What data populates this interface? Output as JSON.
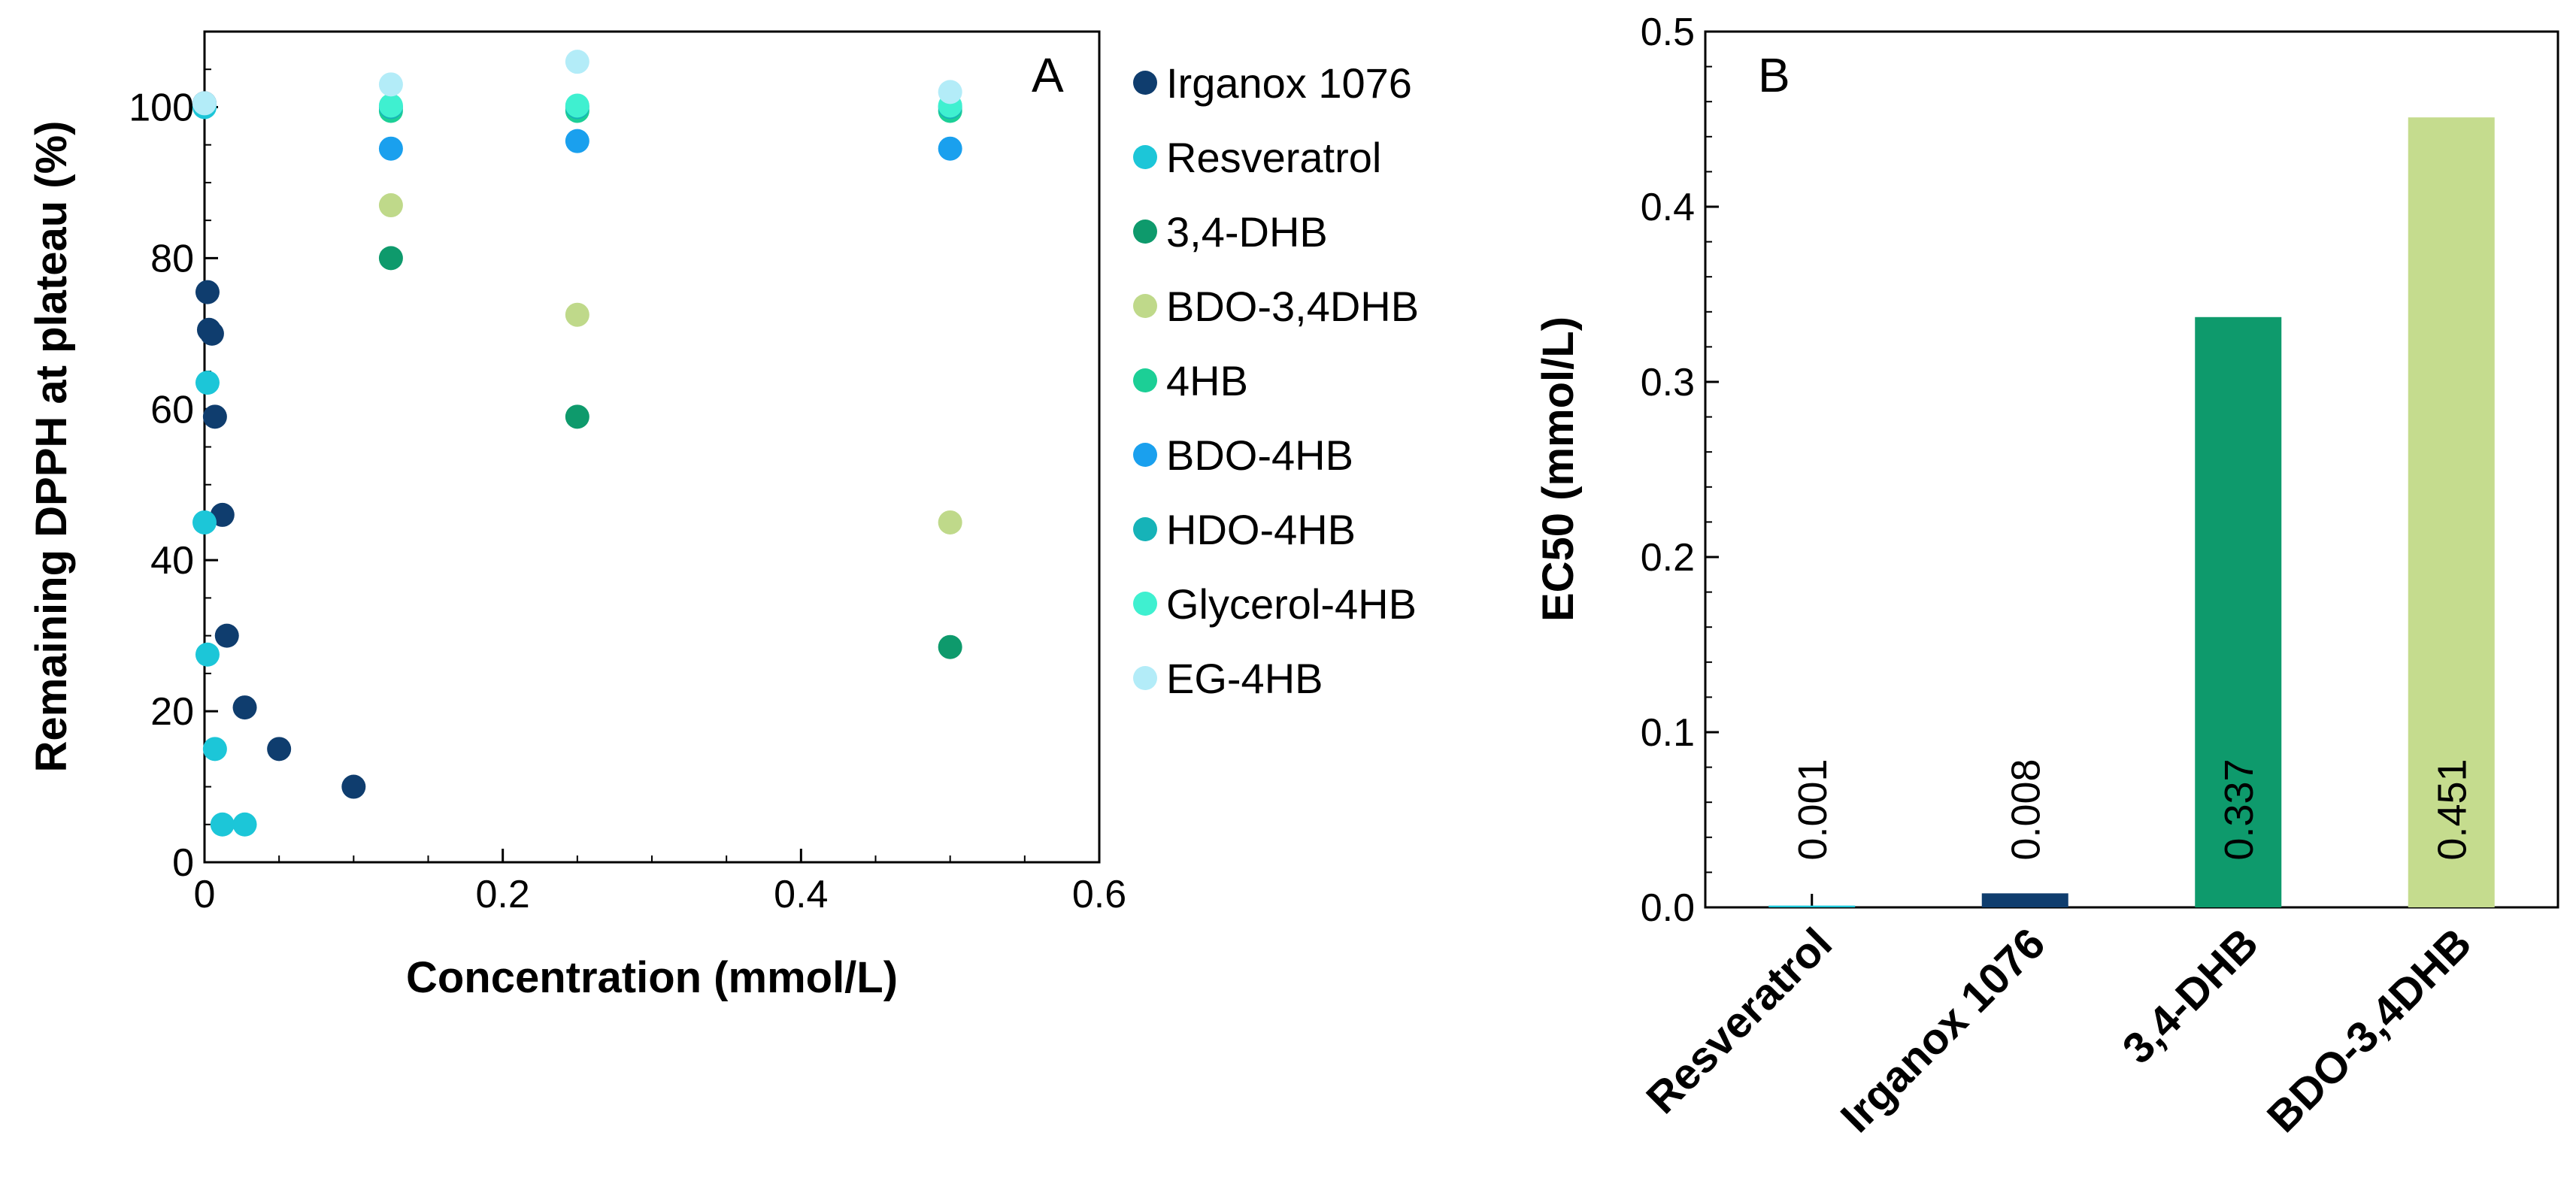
{
  "chart_data": [
    {
      "type": "scatter",
      "panel_label": "A",
      "xlabel": "Concentration (mmol/L)",
      "ylabel": "Remaining DPPH at plateau (%)",
      "xlim": [
        0,
        0.6
      ],
      "ylim": [
        0,
        110
      ],
      "xticks": [
        "0",
        "0.2",
        "0.4",
        "0.6"
      ],
      "yticks": [
        "0",
        "20",
        "40",
        "60",
        "80",
        "100"
      ],
      "grid": false,
      "legend_position": "right",
      "series": [
        {
          "name": "Irganox 1076",
          "color": "#0f3d6e",
          "points": [
            [
              0,
              100.5
            ],
            [
              0.002,
              75.5
            ],
            [
              0.003,
              70.5
            ],
            [
              0.005,
              70
            ],
            [
              0.007,
              59
            ],
            [
              0.012,
              46
            ],
            [
              0.015,
              30
            ],
            [
              0.027,
              20.5
            ],
            [
              0.05,
              15
            ],
            [
              0.1,
              10
            ]
          ]
        },
        {
          "name": "Resveratrol",
          "color": "#1cc6d8",
          "points": [
            [
              0,
              100
            ],
            [
              0,
              45
            ],
            [
              0.002,
              63.5
            ],
            [
              0.002,
              27.5
            ],
            [
              0.007,
              15
            ],
            [
              0.012,
              5
            ],
            [
              0.027,
              5
            ]
          ]
        },
        {
          "name": "3,4-DHB",
          "color": "#0e9a6c",
          "points": [
            [
              0.125,
              80
            ],
            [
              0.25,
              59
            ],
            [
              0.5,
              28.5
            ]
          ]
        },
        {
          "name": "BDO-3,4DHB",
          "color": "#bfd98a",
          "points": [
            [
              0.125,
              87
            ],
            [
              0.25,
              72.5
            ],
            [
              0.5,
              45
            ]
          ]
        },
        {
          "name": "4HB",
          "color": "#1ccf96",
          "points": [
            [
              0.125,
              99.5
            ],
            [
              0.25,
              99.5
            ],
            [
              0.5,
              99.5
            ]
          ]
        },
        {
          "name": "BDO-4HB",
          "color": "#1aa0ee",
          "points": [
            [
              0.125,
              94.5
            ],
            [
              0.25,
              95.5
            ],
            [
              0.5,
              94.5
            ]
          ]
        },
        {
          "name": "HDO-4HB",
          "color": "#16b3b8",
          "points": [
            [
              0.125,
              100
            ],
            [
              0.25,
              100
            ],
            [
              0.5,
              100
            ]
          ]
        },
        {
          "name": "Glycerol-4HB",
          "color": "#3ff0d0",
          "points": [
            [
              0.125,
              100.2
            ],
            [
              0.25,
              100.2
            ],
            [
              0.5,
              100.2
            ]
          ]
        },
        {
          "name": "EG-4HB",
          "color": "#b3ecf8",
          "points": [
            [
              0,
              100.5
            ],
            [
              0.125,
              103
            ],
            [
              0.25,
              106
            ],
            [
              0.5,
              102
            ]
          ]
        }
      ]
    },
    {
      "type": "bar",
      "panel_label": "B",
      "xlabel": "",
      "ylabel": "EC50 (mmol/L)",
      "ylim": [
        0,
        0.5
      ],
      "yticks": [
        "0.0",
        "0.1",
        "0.2",
        "0.3",
        "0.4",
        "0.5"
      ],
      "grid": false,
      "categories": [
        "Resveratrol",
        "Irganox 1076",
        "3,4-DHB",
        "BDO-3,4DHB"
      ],
      "values": [
        0.001,
        0.008,
        0.337,
        0.451
      ],
      "value_labels": [
        "0.001",
        "0.008",
        "0.337",
        "0.451"
      ],
      "colors": [
        "#1cc6d8",
        "#0f3d6e",
        "#0e9a6c",
        "#c5dc8e"
      ]
    }
  ]
}
